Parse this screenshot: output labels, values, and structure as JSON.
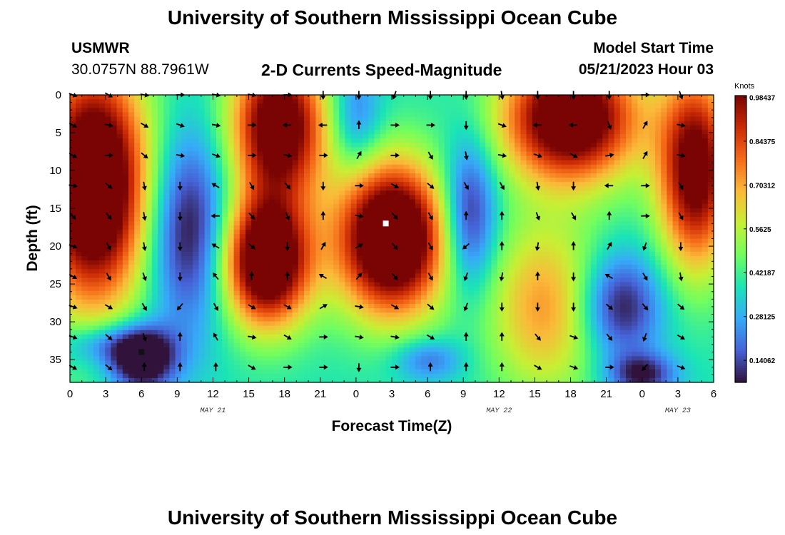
{
  "header": {
    "title": "University of Southern Mississippi Ocean Cube",
    "station": "USMWR",
    "coords": "30.0757N  88.7961W",
    "plot_title": "2-D Currents Speed-Magnitude",
    "model_label": "Model Start Time",
    "model_time": "05/21/2023 Hour 03"
  },
  "footer": {
    "title": "University of Southern Mississippi Ocean Cube"
  },
  "chart_data": {
    "type": "heatmap",
    "title": "2-D Currents Speed-Magnitude",
    "xlabel": "Forecast Time(Z)",
    "ylabel": "Depth (ft)",
    "xlim": [
      0,
      54
    ],
    "ylim": [
      38,
      0
    ],
    "x_ticks": [
      {
        "v": 0,
        "label": "0"
      },
      {
        "v": 3,
        "label": "3"
      },
      {
        "v": 6,
        "label": "6"
      },
      {
        "v": 9,
        "label": "9"
      },
      {
        "v": 12,
        "label": "12"
      },
      {
        "v": 15,
        "label": "15"
      },
      {
        "v": 18,
        "label": "18"
      },
      {
        "v": 21,
        "label": "21"
      },
      {
        "v": 24,
        "label": "0"
      },
      {
        "v": 27,
        "label": "3"
      },
      {
        "v": 30,
        "label": "6"
      },
      {
        "v": 33,
        "label": "9"
      },
      {
        "v": 36,
        "label": "12"
      },
      {
        "v": 39,
        "label": "15"
      },
      {
        "v": 42,
        "label": "18"
      },
      {
        "v": 45,
        "label": "21"
      },
      {
        "v": 48,
        "label": "0"
      },
      {
        "v": 51,
        "label": "3"
      },
      {
        "v": 54,
        "label": "6"
      }
    ],
    "date_labels": [
      {
        "v": 12,
        "label": "MAY 21"
      },
      {
        "v": 36,
        "label": "MAY 22"
      },
      {
        "v": 51,
        "label": "MAY 23"
      }
    ],
    "y_ticks": [
      0,
      5,
      10,
      15,
      20,
      25,
      30,
      35
    ],
    "colorbar": {
      "unit": "Knots",
      "min": 0.07,
      "max": 0.99,
      "labels": [
        "0.14062",
        "0.28125",
        "0.42187",
        "0.5625",
        "0.70312",
        "0.84375",
        "0.98437"
      ],
      "label_values": [
        0.14062,
        0.28125,
        0.42187,
        0.5625,
        0.70312,
        0.84375,
        0.98437
      ],
      "colors": [
        "#30123b",
        "#4662d7",
        "#36aaf9",
        "#1ae4b6",
        "#72fe5e",
        "#c8ef34",
        "#faba39",
        "#f66b19",
        "#cb2a04",
        "#7a0403"
      ]
    },
    "speed_blobs": [
      {
        "t": 2,
        "d": 12,
        "st": 3.2,
        "sd": 11,
        "a": 0.9
      },
      {
        "t": 17.5,
        "d": 4,
        "st": 2.8,
        "sd": 7,
        "a": 0.75
      },
      {
        "t": 16.5,
        "d": 22,
        "st": 2.6,
        "sd": 6,
        "a": 0.85
      },
      {
        "t": 27,
        "d": 19,
        "st": 3.2,
        "sd": 7,
        "a": 0.9
      },
      {
        "t": 42,
        "d": 3,
        "st": 4,
        "sd": 6,
        "a": 0.8
      },
      {
        "t": 52.5,
        "d": 10,
        "st": 2.2,
        "sd": 9,
        "a": 0.7
      },
      {
        "t": 40,
        "d": 28,
        "st": 3.5,
        "sd": 8,
        "a": 0.35
      },
      {
        "t": 3,
        "d": 33,
        "st": 3,
        "sd": 2,
        "a": -0.2
      },
      {
        "t": 6,
        "d": 35,
        "st": 2,
        "sd": 3,
        "a": -0.45
      },
      {
        "t": 10,
        "d": 18,
        "st": 2.5,
        "sd": 9,
        "a": -0.35
      },
      {
        "t": 24,
        "d": 3,
        "st": 1.5,
        "sd": 5,
        "a": -0.2
      },
      {
        "t": 33.5,
        "d": 16,
        "st": 1.6,
        "sd": 7,
        "a": -0.35
      },
      {
        "t": 46,
        "d": 28,
        "st": 2.5,
        "sd": 5,
        "a": -0.35
      },
      {
        "t": 48,
        "d": 37,
        "st": 2,
        "sd": 2,
        "a": -0.3
      },
      {
        "t": 30,
        "d": 35,
        "st": 2,
        "sd": 2,
        "a": -0.2
      }
    ],
    "baseline_speed": 0.38,
    "arrow_times": [
      0,
      3,
      6,
      9,
      12,
      15,
      18,
      21,
      24,
      27,
      30,
      33,
      36,
      39,
      42,
      45,
      48,
      51
    ],
    "arrow_depths": [
      0,
      4,
      8,
      12,
      16,
      20,
      24,
      28,
      32,
      36
    ],
    "arrow_directions_deg": [
      [
        110,
        120,
        100,
        90,
        100,
        100,
        90,
        180,
        180,
        200,
        180,
        180,
        170,
        180,
        180,
        180,
        90,
        160
      ],
      [
        120,
        100,
        120,
        110,
        100,
        90,
        270,
        270,
        0,
        90,
        90,
        180,
        110,
        270,
        270,
        160,
        30,
        100
      ],
      [
        120,
        90,
        130,
        100,
        110,
        90,
        100,
        90,
        30,
        90,
        150,
        170,
        100,
        110,
        120,
        80,
        30,
        100
      ],
      [
        100,
        130,
        170,
        180,
        300,
        150,
        140,
        180,
        90,
        120,
        130,
        150,
        150,
        170,
        180,
        270,
        90,
        150
      ],
      [
        140,
        140,
        170,
        180,
        270,
        140,
        160,
        0,
        100,
        140,
        150,
        0,
        0,
        160,
        150,
        0,
        90,
        150
      ],
      [
        110,
        150,
        170,
        180,
        300,
        130,
        180,
        30,
        60,
        140,
        150,
        230,
        0,
        190,
        0,
        30,
        200,
        180
      ],
      [
        120,
        150,
        160,
        180,
        320,
        0,
        0,
        300,
        40,
        140,
        150,
        200,
        190,
        0,
        180,
        300,
        150,
        170
      ],
      [
        110,
        120,
        150,
        220,
        150,
        120,
        120,
        60,
        100,
        120,
        130,
        200,
        180,
        180,
        180,
        130,
        140,
        130
      ],
      [
        110,
        130,
        160,
        0,
        330,
        100,
        120,
        90,
        100,
        100,
        120,
        0,
        0,
        140,
        110,
        140,
        200,
        120
      ],
      [
        120,
        130,
        0,
        0,
        0,
        120,
        90,
        90,
        180,
        90,
        0,
        0,
        0,
        120,
        110,
        90,
        220,
        110
      ]
    ],
    "markers": [
      {
        "t": 6,
        "d": 34,
        "color": "#111111"
      },
      {
        "t": 26.5,
        "d": 17,
        "color": "#ffffff"
      }
    ]
  }
}
